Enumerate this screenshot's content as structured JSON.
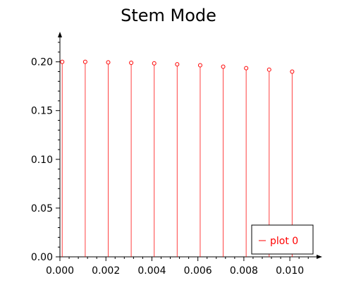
{
  "chart_data": {
    "type": "stem",
    "title": "Stem Mode",
    "xlabel": "",
    "ylabel": "",
    "x": [
      0.0001,
      0.0011,
      0.0021,
      0.0031,
      0.0041,
      0.0051,
      0.0061,
      0.0071,
      0.0081,
      0.0091,
      0.0101
    ],
    "series": [
      {
        "name": "plot 0",
        "color": "#ff0000",
        "values": [
          0.2,
          0.2,
          0.1995,
          0.199,
          0.1985,
          0.1975,
          0.1965,
          0.195,
          0.1935,
          0.192,
          0.19
        ]
      }
    ],
    "xlim": [
      0.0,
      0.0111
    ],
    "ylim": [
      0.0,
      0.22
    ],
    "xticks": [
      0.0,
      0.002,
      0.004,
      0.006,
      0.008,
      0.01
    ],
    "xtick_labels": [
      "0.000",
      "0.002",
      "0.004",
      "0.006",
      "0.008",
      "0.010"
    ],
    "yticks": [
      0.0,
      0.05,
      0.1,
      0.15,
      0.2
    ],
    "ytick_labels": [
      "0.00",
      "0.05",
      "0.10",
      "0.15",
      "0.20"
    ],
    "grid": false,
    "legend": {
      "position": "bottom-right",
      "entries": [
        "plot 0"
      ]
    }
  }
}
